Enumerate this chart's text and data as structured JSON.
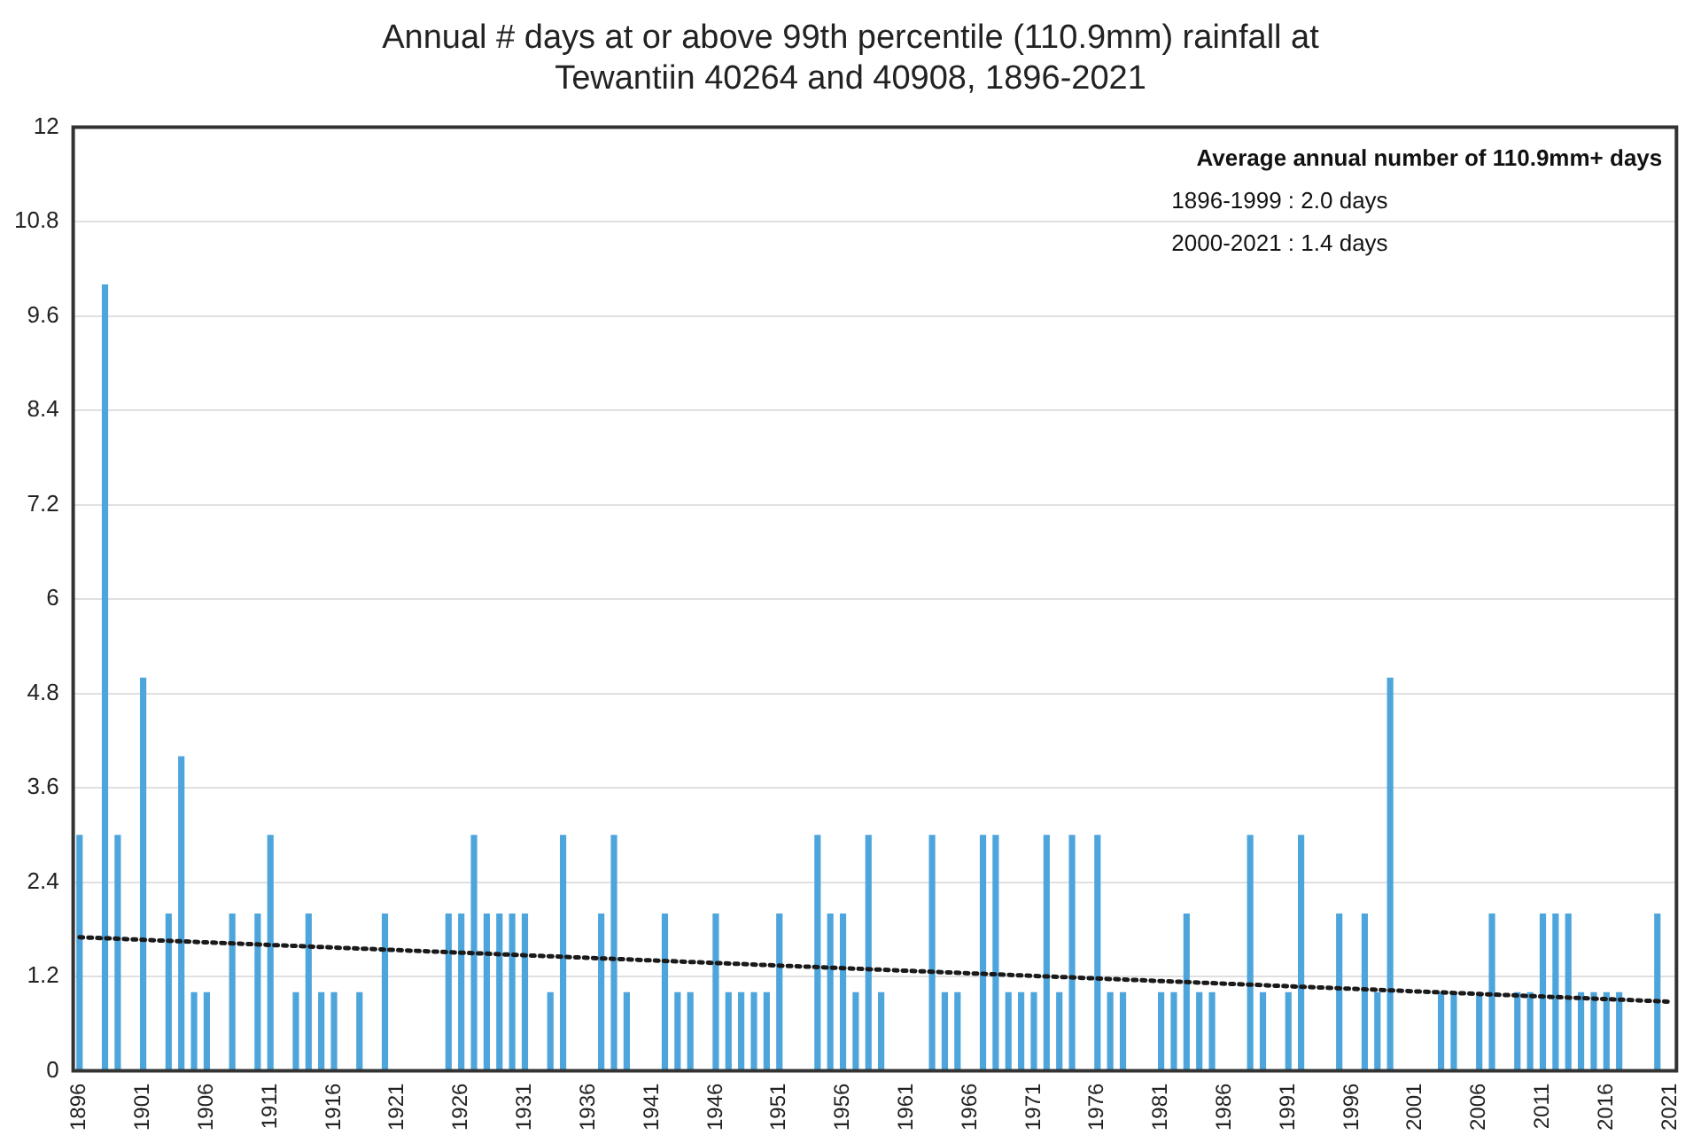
{
  "chart_data": {
    "type": "bar",
    "title": "Annual # days at or above 99th percentile (110.9mm) rainfall at Tewantiin 40264 and 40908, 1896-2021",
    "x": [
      1896,
      1897,
      1898,
      1899,
      1900,
      1901,
      1902,
      1903,
      1904,
      1905,
      1906,
      1907,
      1908,
      1909,
      1910,
      1911,
      1912,
      1913,
      1914,
      1915,
      1916,
      1917,
      1918,
      1919,
      1920,
      1921,
      1922,
      1923,
      1924,
      1925,
      1926,
      1927,
      1928,
      1929,
      1930,
      1931,
      1932,
      1933,
      1934,
      1935,
      1936,
      1937,
      1938,
      1939,
      1940,
      1941,
      1942,
      1943,
      1944,
      1945,
      1946,
      1947,
      1948,
      1949,
      1950,
      1951,
      1952,
      1953,
      1954,
      1955,
      1956,
      1957,
      1958,
      1959,
      1960,
      1961,
      1962,
      1963,
      1964,
      1965,
      1966,
      1967,
      1968,
      1969,
      1970,
      1971,
      1972,
      1973,
      1974,
      1975,
      1976,
      1977,
      1978,
      1979,
      1980,
      1981,
      1982,
      1983,
      1984,
      1985,
      1986,
      1987,
      1988,
      1989,
      1990,
      1991,
      1992,
      1993,
      1994,
      1995,
      1996,
      1997,
      1998,
      1999,
      2000,
      2001,
      2002,
      2003,
      2004,
      2005,
      2006,
      2007,
      2008,
      2009,
      2010,
      2011,
      2012,
      2013,
      2014,
      2015,
      2016,
      2017,
      2018,
      2019,
      2020,
      2021
    ],
    "series": [
      {
        "color": "#4ea5dc",
        "values": [
          3,
          0,
          10,
          3,
          0,
          5,
          0,
          2,
          4,
          1,
          1,
          0,
          2,
          0,
          2,
          3,
          0,
          1,
          2,
          1,
          1,
          0,
          1,
          0,
          2,
          0,
          0,
          0,
          0,
          2,
          2,
          3,
          2,
          2,
          2,
          2,
          0,
          1,
          3,
          0,
          0,
          2,
          3,
          1,
          0,
          0,
          2,
          1,
          1,
          0,
          2,
          1,
          1,
          1,
          1,
          2,
          0,
          0,
          3,
          2,
          2,
          1,
          3,
          1,
          0,
          0,
          0,
          3,
          1,
          1,
          0,
          3,
          3,
          1,
          1,
          1,
          3,
          1,
          3,
          0,
          3,
          1,
          1,
          0,
          0,
          1,
          1,
          2,
          1,
          1,
          0,
          0,
          3,
          1,
          0,
          1,
          3,
          0,
          0,
          2,
          0,
          2,
          1,
          5,
          0,
          0,
          0,
          1,
          1,
          0,
          1,
          2,
          0,
          1,
          1,
          2,
          2,
          2,
          1,
          1,
          1,
          1,
          0,
          0,
          2,
          0
        ]
      },
      {
        "type": "line",
        "color": "#1a1a1a",
        "line_style": "dotted",
        "marker": "none",
        "x": [
          1896,
          2021
        ],
        "values": [
          1.7,
          0.88
        ]
      }
    ],
    "xlim": [
      1895.5,
      2021.5
    ],
    "xticks": [
      1896,
      1901,
      1906,
      1911,
      1916,
      1921,
      1926,
      1931,
      1936,
      1941,
      1946,
      1951,
      1956,
      1961,
      1966,
      1971,
      1976,
      1981,
      1986,
      1991,
      1996,
      2001,
      2006,
      2011,
      2016,
      2021
    ],
    "ylim": [
      0,
      12
    ],
    "yticks": [
      0,
      1.2,
      2.4,
      3.6,
      4.8,
      6,
      7.2,
      8.4,
      9.6,
      10.8,
      12
    ],
    "grid": "y",
    "legend": false,
    "annotations": [
      "Average annual number of 110.9mm+ days",
      "1896-1999 : 2.0 days",
      "2000-2021 : 1.4 days"
    ]
  }
}
